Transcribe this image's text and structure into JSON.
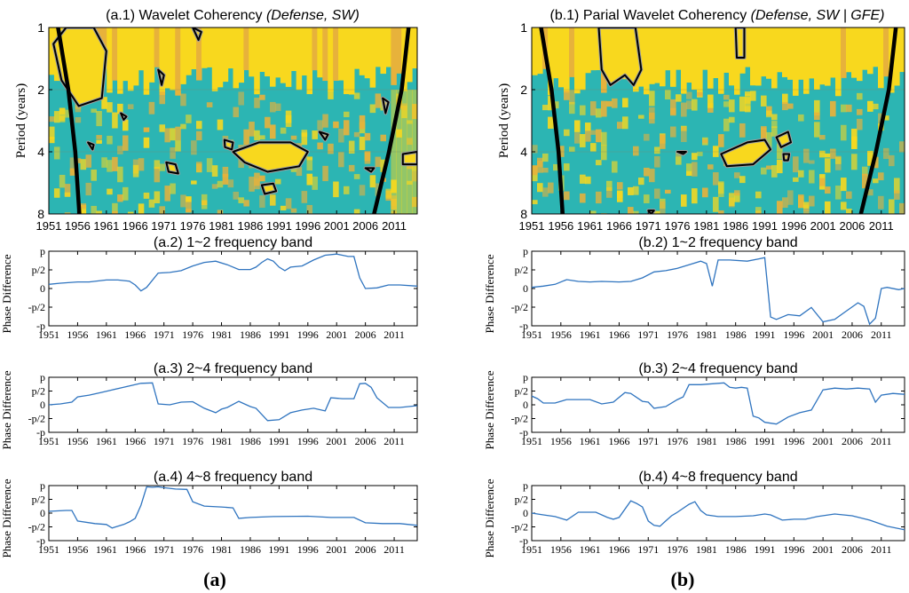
{
  "figure": {
    "left_caption": "(a)",
    "right_caption": "(b)"
  },
  "colors": {
    "coherency_high": "#f8d81e",
    "coherency_low": "#2cb5b3",
    "coherency_mid": "#e7b23b",
    "contour_sig": "#000000",
    "contour_outline": "#a0a0a0",
    "phase_line": "#2f74bf",
    "axis": "#000000"
  },
  "chart_data": [
    {
      "id": "a1",
      "type": "heatmap",
      "title_plain": "(a.1) Wavelet Coherency ",
      "title_italic": "(Defense, SW)",
      "ylabel": "Period (years)",
      "x_ticks": [
        "1951",
        "1956",
        "1961",
        "1966",
        "1971",
        "1976",
        "1981",
        "1986",
        "1991",
        "1996",
        "2001",
        "2006",
        "2011"
      ],
      "y_ticks": [
        "1",
        "2",
        "4",
        "8"
      ],
      "xlim": [
        1951,
        2015
      ],
      "ylim": [
        1,
        8
      ],
      "y_scale": "log2",
      "cone_of_influence": [
        [
          1952.6,
          1
        ],
        [
          1954.4,
          2
        ],
        [
          1955.6,
          4
        ],
        [
          1956.3,
          8
        ],
        [
          2007.5,
          8
        ],
        [
          2010.1,
          4
        ],
        [
          2012.3,
          2
        ],
        [
          2013.5,
          1
        ]
      ],
      "significant_regions": [
        {
          "x": [
            1951.8,
            1954.0,
            1958.8,
            1961.0,
            1960.2,
            1956.2,
            1953.2
          ],
          "y": [
            1.2,
            1.0,
            1.0,
            1.3,
            2.2,
            2.4,
            1.8
          ]
        },
        {
          "x": [
            1983.0,
            1987.5,
            1993.0,
            1996.0,
            1994.5,
            1989.0,
            1985.0
          ],
          "y": [
            4.0,
            3.6,
            3.6,
            4.0,
            4.7,
            5.0,
            4.5
          ]
        },
        {
          "x": [
            1988.0,
            1990.0,
            1990.5,
            1988.5
          ],
          "y": [
            5.8,
            5.7,
            6.2,
            6.4
          ]
        },
        {
          "x": [
            1971.4,
            1973.0,
            1973.5,
            1971.8
          ],
          "y": [
            4.5,
            4.6,
            5.1,
            5.0
          ]
        },
        {
          "x": [
            1981.5,
            1983.0,
            1982.8,
            1981.6
          ],
          "y": [
            3.5,
            3.6,
            3.9,
            3.8
          ]
        },
        {
          "x": [
            1957.8,
            1958.8,
            1958.6
          ],
          "y": [
            3.6,
            3.7,
            3.9
          ]
        },
        {
          "x": [
            1970.0,
            1971.0,
            1970.6
          ],
          "y": [
            1.6,
            1.7,
            1.9
          ]
        },
        {
          "x": [
            2012.5,
            2015.0,
            2015.0,
            2012.5
          ],
          "y": [
            4.1,
            4.0,
            4.6,
            4.6
          ]
        },
        {
          "x": [
            1963.5,
            1964.5,
            1964.0
          ],
          "y": [
            2.6,
            2.7,
            2.8
          ]
        },
        {
          "x": [
            1998.0,
            1999.5,
            1999.0
          ],
          "y": [
            3.2,
            3.3,
            3.5
          ]
        },
        {
          "x": [
            2006.0,
            2007.5,
            2007.0
          ],
          "y": [
            4.8,
            4.8,
            5.0
          ]
        },
        {
          "x": [
            2009.0,
            2010.0,
            2009.5
          ],
          "y": [
            2.2,
            2.3,
            2.6
          ]
        },
        {
          "x": [
            1976.0,
            1977.5,
            1977.0
          ],
          "y": [
            1.0,
            1.05,
            1.15
          ]
        }
      ]
    },
    {
      "id": "b1",
      "type": "heatmap",
      "title_plain": "(b.1)  Parial Wavelet Coherency ",
      "title_italic": "(Defense, SW | GFE)",
      "ylabel": "Period (years)",
      "x_ticks": [
        "1951",
        "1956",
        "1961",
        "1966",
        "1971",
        "1976",
        "1981",
        "1986",
        "1991",
        "1996",
        "2001",
        "2006",
        "2011"
      ],
      "y_ticks": [
        "1",
        "2",
        "4",
        "8"
      ],
      "xlim": [
        1951,
        2015
      ],
      "ylim": [
        1,
        8
      ],
      "y_scale": "log2",
      "cone_of_influence": [
        [
          1952.6,
          1
        ],
        [
          1954.4,
          2
        ],
        [
          1955.6,
          4
        ],
        [
          1956.3,
          8
        ],
        [
          2007.5,
          8
        ],
        [
          2010.1,
          4
        ],
        [
          2012.3,
          2
        ],
        [
          2013.5,
          1
        ]
      ],
      "significant_regions": [
        {
          "x": [
            1962.5,
            1964.5,
            1968.8,
            1969.8,
            1968.5,
            1967.0,
            1964.5,
            1963.0
          ],
          "y": [
            1.0,
            1.0,
            1.0,
            1.6,
            1.9,
            1.7,
            1.9,
            1.6
          ]
        },
        {
          "x": [
            1983.5,
            1988.0,
            1991.0,
            1992.0,
            1989.0,
            1984.5
          ],
          "y": [
            4.1,
            3.6,
            3.5,
            3.9,
            4.6,
            4.7
          ]
        },
        {
          "x": [
            1993.0,
            1995.0,
            1995.5,
            1993.8
          ],
          "y": [
            3.4,
            3.2,
            3.6,
            3.8
          ]
        },
        {
          "x": [
            1986.0,
            1987.5,
            1987.5,
            1986.2
          ],
          "y": [
            1.0,
            1.0,
            1.4,
            1.4
          ]
        },
        {
          "x": [
            1994.2,
            1995.2,
            1995.0,
            1994.3
          ],
          "y": [
            4.1,
            4.1,
            4.4,
            4.4
          ]
        },
        {
          "x": [
            1976.0,
            1977.5,
            1977.0
          ],
          "y": [
            4.0,
            4.0,
            4.1
          ]
        },
        {
          "x": [
            1971.0,
            1972.0,
            1971.5
          ],
          "y": [
            7.7,
            7.7,
            8.0
          ]
        }
      ]
    },
    {
      "id": "a2",
      "type": "line",
      "title": "(a.2) 1~2 frequency band",
      "ylabel": "Phase Difference",
      "y_ticks": [
        "p",
        "p/2",
        "0",
        "-p/2",
        "-p"
      ],
      "x_ticks": [
        "1951",
        "1956",
        "1961",
        "1966",
        "1971",
        "1976",
        "1981",
        "1986",
        "1991",
        "1996",
        "2001",
        "2006",
        "2011"
      ],
      "xlim": [
        1951,
        2015
      ],
      "ylim": [
        -3.14,
        3.14
      ],
      "series": [
        {
          "name": "phase",
          "x": [
            1951,
            1953,
            1956,
            1958,
            1961,
            1963,
            1965,
            1966,
            1967,
            1968,
            1970,
            1972,
            1974,
            1976,
            1978,
            1980,
            1982,
            1984,
            1986,
            1987,
            1988,
            1989,
            1990,
            1991,
            1992,
            1993,
            1995,
            1997,
            1999,
            2001,
            2002,
            2003,
            2004,
            2005,
            2006,
            2008,
            2010,
            2012,
            2015
          ],
          "y": [
            0.35,
            0.45,
            0.55,
            0.55,
            0.72,
            0.72,
            0.62,
            0.3,
            -0.2,
            0.1,
            1.3,
            1.35,
            1.5,
            1.9,
            2.2,
            2.3,
            2.0,
            1.6,
            1.6,
            1.8,
            2.2,
            2.5,
            2.3,
            1.8,
            1.5,
            1.8,
            1.9,
            2.4,
            2.8,
            2.9,
            2.8,
            2.7,
            2.7,
            0.9,
            0.0,
            0.05,
            0.3,
            0.3,
            0.2
          ]
        }
      ]
    },
    {
      "id": "b2",
      "type": "line",
      "title": "(b.2) 1~2 frequency band",
      "ylabel": "Phase Difference",
      "y_ticks": [
        "p",
        "p/2",
        "0",
        "-p/2",
        "-p"
      ],
      "x_ticks": [
        "1951",
        "1956",
        "1961",
        "1966",
        "1971",
        "1976",
        "1981",
        "1986",
        "1991",
        "1996",
        "2001",
        "2006",
        "2011"
      ],
      "xlim": [
        1951,
        2015
      ],
      "ylim": [
        -3.14,
        3.14
      ],
      "series": [
        {
          "name": "phase",
          "x": [
            1951,
            1953,
            1955,
            1957,
            1959,
            1961,
            1963,
            1966,
            1968,
            1970,
            1972,
            1974,
            1976,
            1978,
            1980,
            1981,
            1982,
            1983,
            1985,
            1988,
            1990,
            1991,
            1992,
            1993,
            1995,
            1997,
            1999,
            2001,
            2003,
            2005,
            2007,
            2008,
            2009,
            2010,
            2011,
            2012,
            2014,
            2015
          ],
          "y": [
            0.1,
            0.2,
            0.35,
            0.75,
            0.6,
            0.55,
            0.6,
            0.55,
            0.6,
            0.9,
            1.4,
            1.5,
            1.7,
            2.0,
            2.3,
            2.1,
            0.2,
            2.4,
            2.4,
            2.3,
            2.5,
            2.6,
            -2.4,
            -2.6,
            -2.2,
            -2.3,
            -1.6,
            -2.8,
            -2.6,
            -1.9,
            -1.2,
            -1.5,
            -3.0,
            -2.5,
            0.0,
            0.1,
            -0.1,
            0.0
          ]
        }
      ]
    },
    {
      "id": "a3",
      "type": "line",
      "title": "(a.3) 2~4 frequency band",
      "ylabel": "Phase Difference",
      "y_ticks": [
        "p",
        "p/2",
        "0",
        "-p/2",
        "-p"
      ],
      "x_ticks": [
        "1951",
        "1956",
        "1961",
        "1966",
        "1971",
        "1976",
        "1981",
        "1986",
        "1991",
        "1996",
        "2001",
        "2006",
        "2011"
      ],
      "xlim": [
        1951,
        2015
      ],
      "ylim": [
        -3.14,
        3.14
      ],
      "series": [
        {
          "name": "phase",
          "x": [
            1951,
            1953,
            1955,
            1956,
            1958,
            1960,
            1962,
            1964,
            1966,
            1967,
            1969,
            1970,
            1972,
            1974,
            1976,
            1978,
            1980,
            1981,
            1982,
            1984,
            1986,
            1987,
            1989,
            1991,
            1993,
            1995,
            1997,
            1999,
            2000,
            2002,
            2004,
            2005,
            2006,
            2007,
            2008,
            2010,
            2012,
            2015
          ],
          "y": [
            0.0,
            0.1,
            0.3,
            0.9,
            1.1,
            1.4,
            1.7,
            2.0,
            2.3,
            2.45,
            2.5,
            0.1,
            0.0,
            0.3,
            0.35,
            -0.4,
            -0.9,
            -0.5,
            -0.3,
            0.4,
            -0.2,
            -0.4,
            -1.8,
            -1.7,
            -0.9,
            -0.6,
            -0.4,
            -0.7,
            0.8,
            0.7,
            0.7,
            2.4,
            2.45,
            2.0,
            0.8,
            -0.3,
            -0.3,
            -0.1
          ]
        }
      ]
    },
    {
      "id": "b3",
      "type": "line",
      "title": "(b.3) 2~4 frequency band",
      "ylabel": "Phase Difference",
      "y_ticks": [
        "p",
        "p/2",
        "0",
        "-p/2",
        "-p"
      ],
      "x_ticks": [
        "1951",
        "1956",
        "1961",
        "1966",
        "1971",
        "1976",
        "1981",
        "1986",
        "1991",
        "1996",
        "2001",
        "2006",
        "2011"
      ],
      "xlim": [
        1951,
        2015
      ],
      "ylim": [
        -3.14,
        3.14
      ],
      "series": [
        {
          "name": "phase",
          "x": [
            1951,
            1952,
            1953,
            1955,
            1957,
            1959,
            1961,
            1963,
            1965,
            1967,
            1968,
            1970,
            1971,
            1972,
            1974,
            1976,
            1977,
            1978,
            1980,
            1982,
            1984,
            1985,
            1986,
            1987,
            1988,
            1989,
            1990,
            1991,
            1993,
            1995,
            1997,
            1999,
            2001,
            2003,
            2005,
            2007,
            2009,
            2010,
            2011,
            2013,
            2015
          ],
          "y": [
            1.0,
            0.7,
            0.2,
            0.2,
            0.6,
            0.6,
            0.6,
            0.1,
            0.3,
            1.4,
            1.3,
            0.4,
            0.3,
            -0.4,
            -0.2,
            0.6,
            0.9,
            2.3,
            2.3,
            2.4,
            2.5,
            2.0,
            1.9,
            2.0,
            1.9,
            -1.3,
            -1.5,
            -2.0,
            -2.2,
            -1.4,
            -0.9,
            -0.6,
            1.7,
            1.9,
            1.8,
            1.9,
            1.8,
            0.3,
            1.1,
            1.3,
            1.2
          ]
        }
      ]
    },
    {
      "id": "a4",
      "type": "line",
      "title": "(a.4) 4~8 frequency band",
      "ylabel": "Phase Difference",
      "y_ticks": [
        "p",
        "p/2",
        "0",
        "-p/2",
        "-p"
      ],
      "x_ticks": [
        "1951",
        "1956",
        "1961",
        "1966",
        "1971",
        "1976",
        "1981",
        "1986",
        "1991",
        "1996",
        "2001",
        "2006",
        "2011"
      ],
      "xlim": [
        1951,
        2015
      ],
      "ylim": [
        -3.14,
        3.14
      ],
      "series": [
        {
          "name": "phase",
          "x": [
            1951,
            1954,
            1955,
            1956,
            1959,
            1961,
            1962,
            1963,
            1964,
            1965,
            1966,
            1967,
            1968,
            1969,
            1970,
            1971,
            1973,
            1975,
            1976,
            1978,
            1981,
            1983,
            1984,
            1986,
            1990,
            1996,
            2000,
            2003,
            2004,
            2006,
            2009,
            2012,
            2015
          ],
          "y": [
            0.2,
            0.3,
            0.3,
            -0.9,
            -1.2,
            -1.3,
            -1.7,
            -1.5,
            -1.3,
            -1.0,
            -0.6,
            0.9,
            3.0,
            2.95,
            3.0,
            2.9,
            2.75,
            2.7,
            1.3,
            0.8,
            0.7,
            0.6,
            -0.6,
            -0.5,
            -0.4,
            -0.35,
            -0.5,
            -0.5,
            -0.5,
            -1.1,
            -1.2,
            -1.2,
            -1.4
          ]
        }
      ]
    },
    {
      "id": "b4",
      "type": "line",
      "title": "(b.4) 4~8 frequency band",
      "ylabel": "Phase Difference",
      "y_ticks": [
        "p",
        "p/2",
        "0",
        "-p/2",
        "-p"
      ],
      "x_ticks": [
        "1951",
        "1956",
        "1961",
        "1966",
        "1971",
        "1976",
        "1981",
        "1986",
        "1991",
        "1996",
        "2001",
        "2006",
        "2011"
      ],
      "xlim": [
        1951,
        2015
      ],
      "ylim": [
        -3.14,
        3.14
      ],
      "series": [
        {
          "name": "phase",
          "x": [
            1951,
            1953,
            1955,
            1957,
            1959,
            1962,
            1964,
            1965,
            1966,
            1968,
            1969,
            1970,
            1971,
            1972,
            1973,
            1974,
            1975,
            1976,
            1978,
            1979,
            1980,
            1981,
            1983,
            1986,
            1989,
            1991,
            1992,
            1994,
            1996,
            1998,
            2000,
            2003,
            2006,
            2009,
            2012,
            2015
          ],
          "y": [
            0.0,
            -0.2,
            -0.4,
            -0.8,
            0.1,
            0.1,
            -0.5,
            -0.7,
            -0.5,
            1.4,
            1.1,
            0.7,
            -0.9,
            -1.4,
            -1.5,
            -0.9,
            -0.3,
            0.1,
            1.0,
            1.3,
            0.3,
            -0.2,
            -0.4,
            -0.4,
            -0.3,
            -0.1,
            -0.2,
            -0.8,
            -0.7,
            -0.7,
            -0.4,
            -0.1,
            -0.3,
            -0.8,
            -1.5,
            -1.9
          ]
        }
      ]
    }
  ]
}
